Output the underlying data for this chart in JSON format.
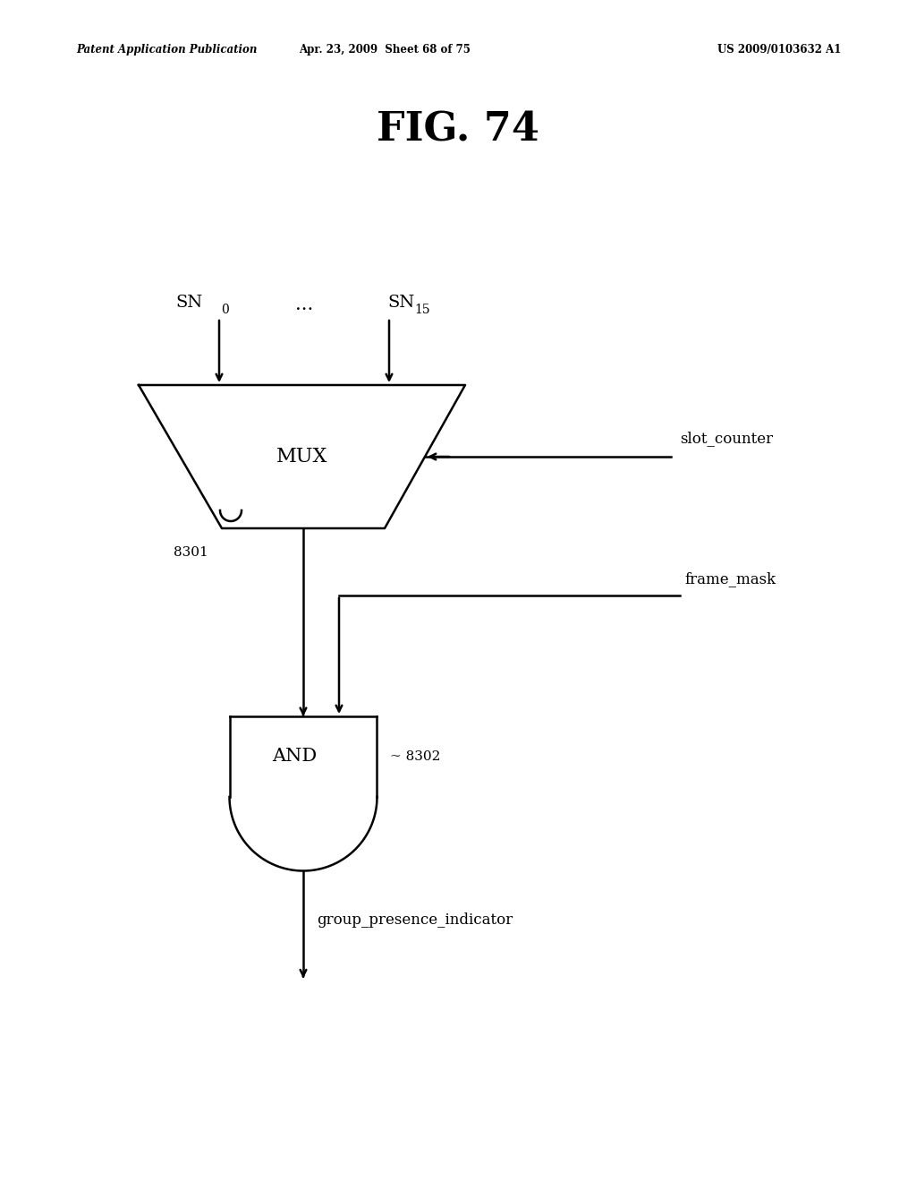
{
  "bg_color": "#ffffff",
  "header_left": "Patent Application Publication",
  "header_mid": "Apr. 23, 2009  Sheet 68 of 75",
  "header_right": "US 2009/0103632 A1",
  "fig_title": "FIG. 74",
  "mux_label": "MUX",
  "mux_id": "8301",
  "and_label": "AND",
  "and_id": "8302",
  "sn0_label": "SN",
  "sn0_sub": "0",
  "sn15_label": "SN",
  "sn15_sub": "15",
  "dots_label": "...",
  "slot_counter_label": "slot_counter",
  "frame_mask_label": "frame_mask",
  "group_presence_label": "group_presence_indicator",
  "line_color": "#000000",
  "text_color": "#000000"
}
